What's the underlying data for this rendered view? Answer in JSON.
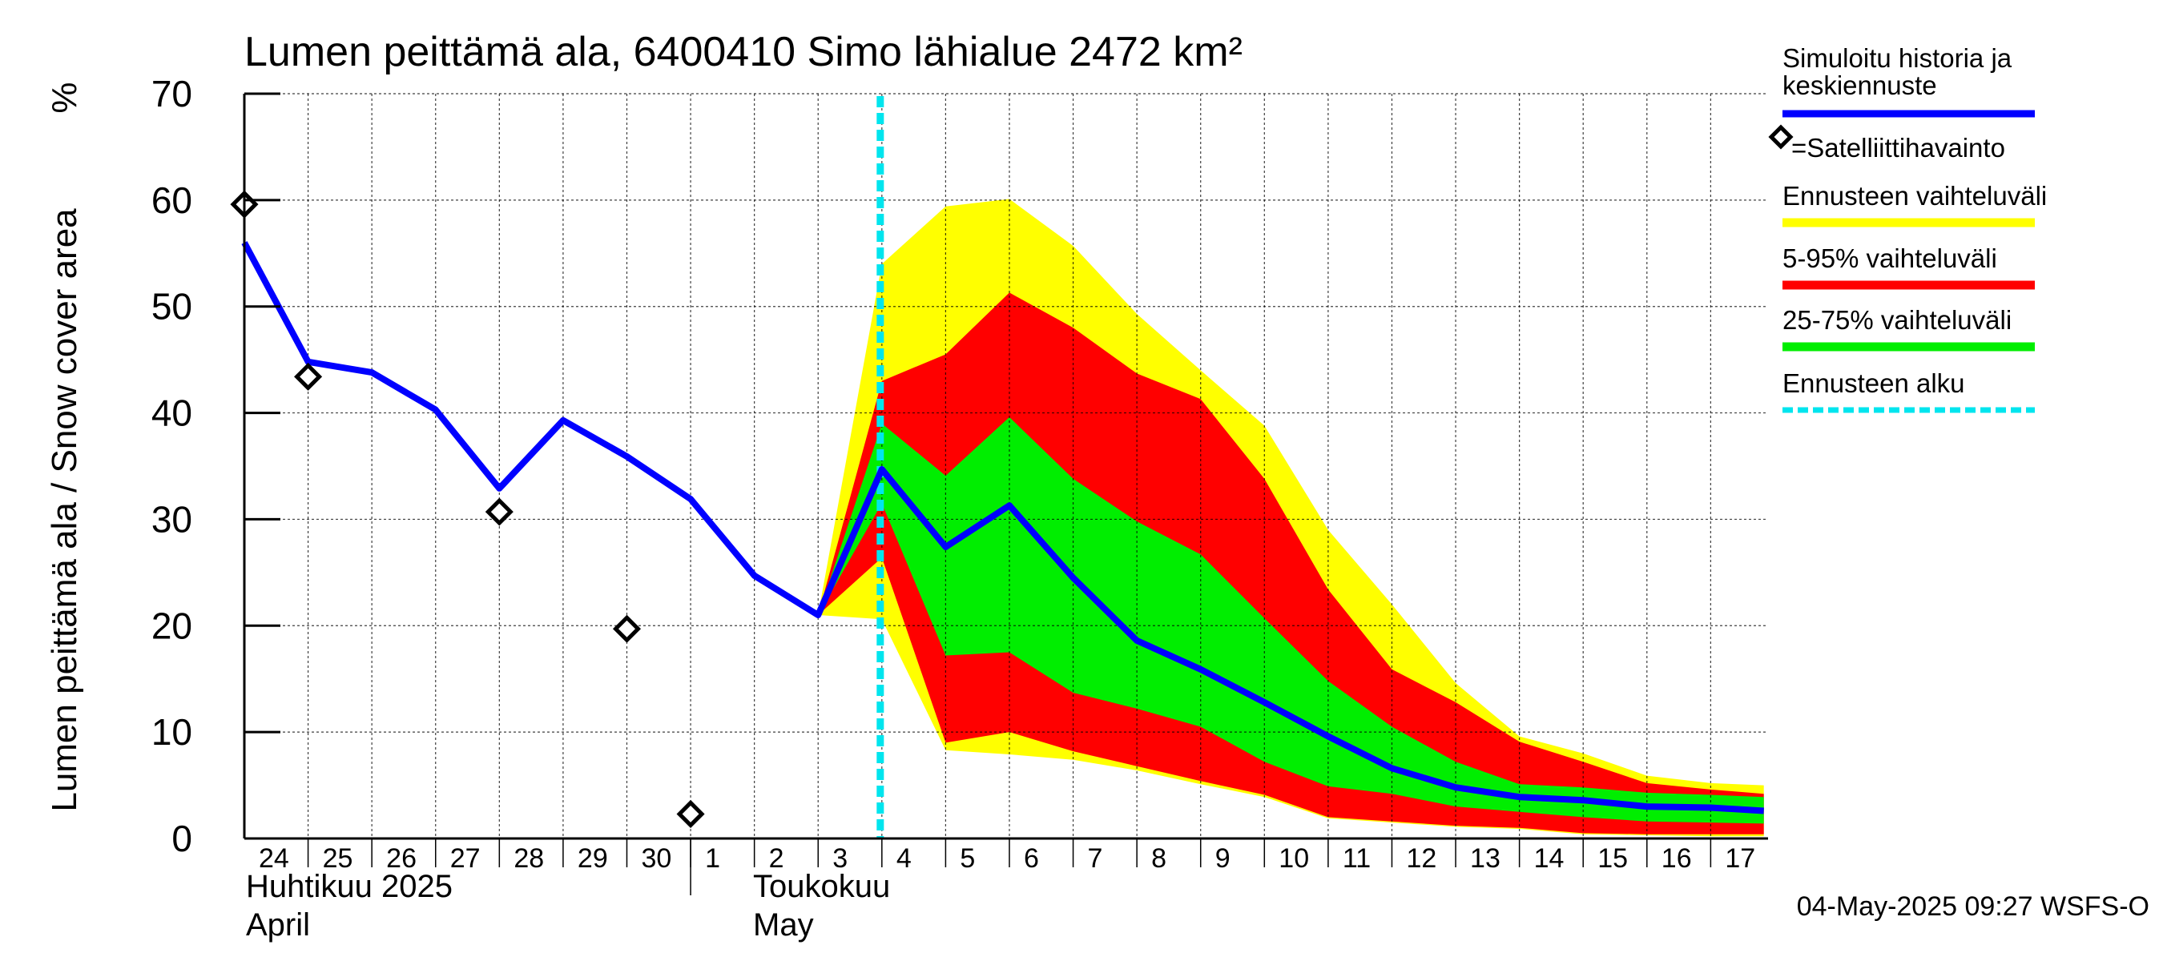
{
  "chart_data": {
    "type": "area",
    "title": "Lumen peittämä ala, 6400410 Simo lähialue 2472 km²",
    "ylabel": "Lumen peittämä ala / Snow cover area",
    "yunit": "%",
    "ylim": [
      0,
      70
    ],
    "yticks": [
      "0",
      "10",
      "20",
      "30",
      "40",
      "50",
      "60",
      "70"
    ],
    "x_start": "2025-04-24",
    "x_end": "2025-05-17",
    "x_tick_labels": [
      "24",
      "25",
      "26",
      "27",
      "28",
      "29",
      "30",
      "1",
      "2",
      "3",
      "4",
      "5",
      "6",
      "7",
      "8",
      "9",
      "10",
      "11",
      "12",
      "13",
      "14",
      "15",
      "16",
      "17"
    ],
    "month_labels": {
      "april_fi": "Huhtikuu  2025",
      "april_en": "April",
      "may_fi": "Toukokuu",
      "may_en": "May"
    },
    "grid": true,
    "forecast_start": "2025-05-04",
    "series": [
      {
        "name": "Simuloitu historia ja keskiennuste",
        "color": "#0000ff",
        "points": [
          [
            "2025-04-24",
            56.0
          ],
          [
            "2025-04-25",
            44.8
          ],
          [
            "2025-04-26",
            43.8
          ],
          [
            "2025-04-27",
            40.3
          ],
          [
            "2025-04-28",
            32.9
          ],
          [
            "2025-04-29",
            39.3
          ],
          [
            "2025-04-30",
            35.9
          ],
          [
            "2025-05-01",
            31.9
          ],
          [
            "2025-05-02",
            24.7
          ],
          [
            "2025-05-03",
            21.0
          ],
          [
            "2025-05-04",
            34.7
          ],
          [
            "2025-05-05",
            27.4
          ],
          [
            "2025-05-06",
            31.3
          ],
          [
            "2025-05-07",
            24.5
          ],
          [
            "2025-05-08",
            18.6
          ],
          [
            "2025-05-09",
            15.9
          ],
          [
            "2025-05-10",
            12.8
          ],
          [
            "2025-05-11",
            9.6
          ],
          [
            "2025-05-12",
            6.6
          ],
          [
            "2025-05-13",
            4.8
          ],
          [
            "2025-05-14",
            3.9
          ],
          [
            "2025-05-15",
            3.6
          ],
          [
            "2025-05-16",
            3.0
          ],
          [
            "2025-05-17",
            2.9
          ],
          [
            "2025-05-17T20:00",
            2.6
          ]
        ]
      },
      {
        "name": "=Satelliittihavainto",
        "type": "scatter",
        "marker": "diamond",
        "points": [
          [
            "2025-04-24",
            59.6
          ],
          [
            "2025-04-25",
            43.4
          ],
          [
            "2025-04-28",
            30.7
          ],
          [
            "2025-04-30",
            19.7
          ],
          [
            "2025-05-01",
            2.3
          ]
        ]
      }
    ],
    "bands": [
      {
        "name": "Ennusteen vaihteluväli",
        "color": "#ffff00",
        "x": [
          "2025-05-03",
          "2025-05-04",
          "2025-05-05",
          "2025-05-06",
          "2025-05-07",
          "2025-05-08",
          "2025-05-09",
          "2025-05-10",
          "2025-05-11",
          "2025-05-12",
          "2025-05-13",
          "2025-05-14",
          "2025-05-15",
          "2025-05-16",
          "2025-05-17",
          "2025-05-17T20:00"
        ],
        "upper": [
          21.0,
          54.0,
          59.4,
          60.1,
          55.7,
          49.3,
          44.0,
          38.8,
          29.0,
          22.0,
          14.6,
          9.6,
          8.0,
          5.9,
          5.2,
          5.0
        ],
        "lower": [
          21.0,
          20.6,
          8.3,
          7.9,
          7.4,
          6.4,
          5.1,
          3.9,
          1.9,
          1.5,
          1.1,
          0.9,
          0.4,
          0.3,
          0.2,
          0.2
        ]
      },
      {
        "name": "5-95% vaihteluväli",
        "color": "#ff0000",
        "x": [
          "2025-05-03",
          "2025-05-04",
          "2025-05-05",
          "2025-05-06",
          "2025-05-07",
          "2025-05-08",
          "2025-05-09",
          "2025-05-10",
          "2025-05-11",
          "2025-05-12",
          "2025-05-13",
          "2025-05-14",
          "2025-05-15",
          "2025-05-16",
          "2025-05-17",
          "2025-05-17T20:00"
        ],
        "upper": [
          21.0,
          43.0,
          45.5,
          51.3,
          48.0,
          43.7,
          41.3,
          33.8,
          23.4,
          15.9,
          12.8,
          9.1,
          7.2,
          5.2,
          4.6,
          4.2
        ],
        "lower": [
          21.0,
          26.4,
          9.0,
          10.0,
          8.2,
          6.8,
          5.4,
          4.1,
          2.0,
          1.6,
          1.2,
          1.0,
          0.5,
          0.4,
          0.4,
          0.4
        ]
      },
      {
        "name": "25-75% vaihteluväli",
        "color": "#00ee00",
        "x": [
          "2025-05-03",
          "2025-05-04",
          "2025-05-05",
          "2025-05-06",
          "2025-05-07",
          "2025-05-08",
          "2025-05-09",
          "2025-05-10",
          "2025-05-11",
          "2025-05-12",
          "2025-05-13",
          "2025-05-14",
          "2025-05-15",
          "2025-05-16",
          "2025-05-17",
          "2025-05-17T20:00"
        ],
        "upper": [
          21.0,
          39.0,
          34.1,
          39.6,
          33.8,
          29.8,
          26.7,
          20.7,
          14.8,
          10.5,
          7.2,
          5.1,
          4.8,
          4.3,
          4.1,
          3.9
        ],
        "lower": [
          21.0,
          31.5,
          17.2,
          17.5,
          13.7,
          12.2,
          10.5,
          7.2,
          4.9,
          4.2,
          3.0,
          2.5,
          2.0,
          1.6,
          1.5,
          1.4
        ]
      }
    ],
    "legend": {
      "placement": "right",
      "entries": [
        {
          "label": "Simuloitu historia ja keskiennuste",
          "color": "#0000ff",
          "style": "line"
        },
        {
          "label": "=Satelliittihavainto",
          "color": "#000000",
          "style": "diamond"
        },
        {
          "label": "Ennusteen vaihteluväli",
          "color": "#ffff00",
          "style": "line"
        },
        {
          "label": "5-95% vaihteluväli",
          "color": "#ff0000",
          "style": "line"
        },
        {
          "label": "25-75% vaihteluväli",
          "color": "#00ee00",
          "style": "line"
        },
        {
          "label": "Ennusteen alku",
          "color": "#00e5ee",
          "style": "dashed"
        }
      ]
    },
    "timestamp": "04-May-2025 09:27 WSFS-O"
  }
}
